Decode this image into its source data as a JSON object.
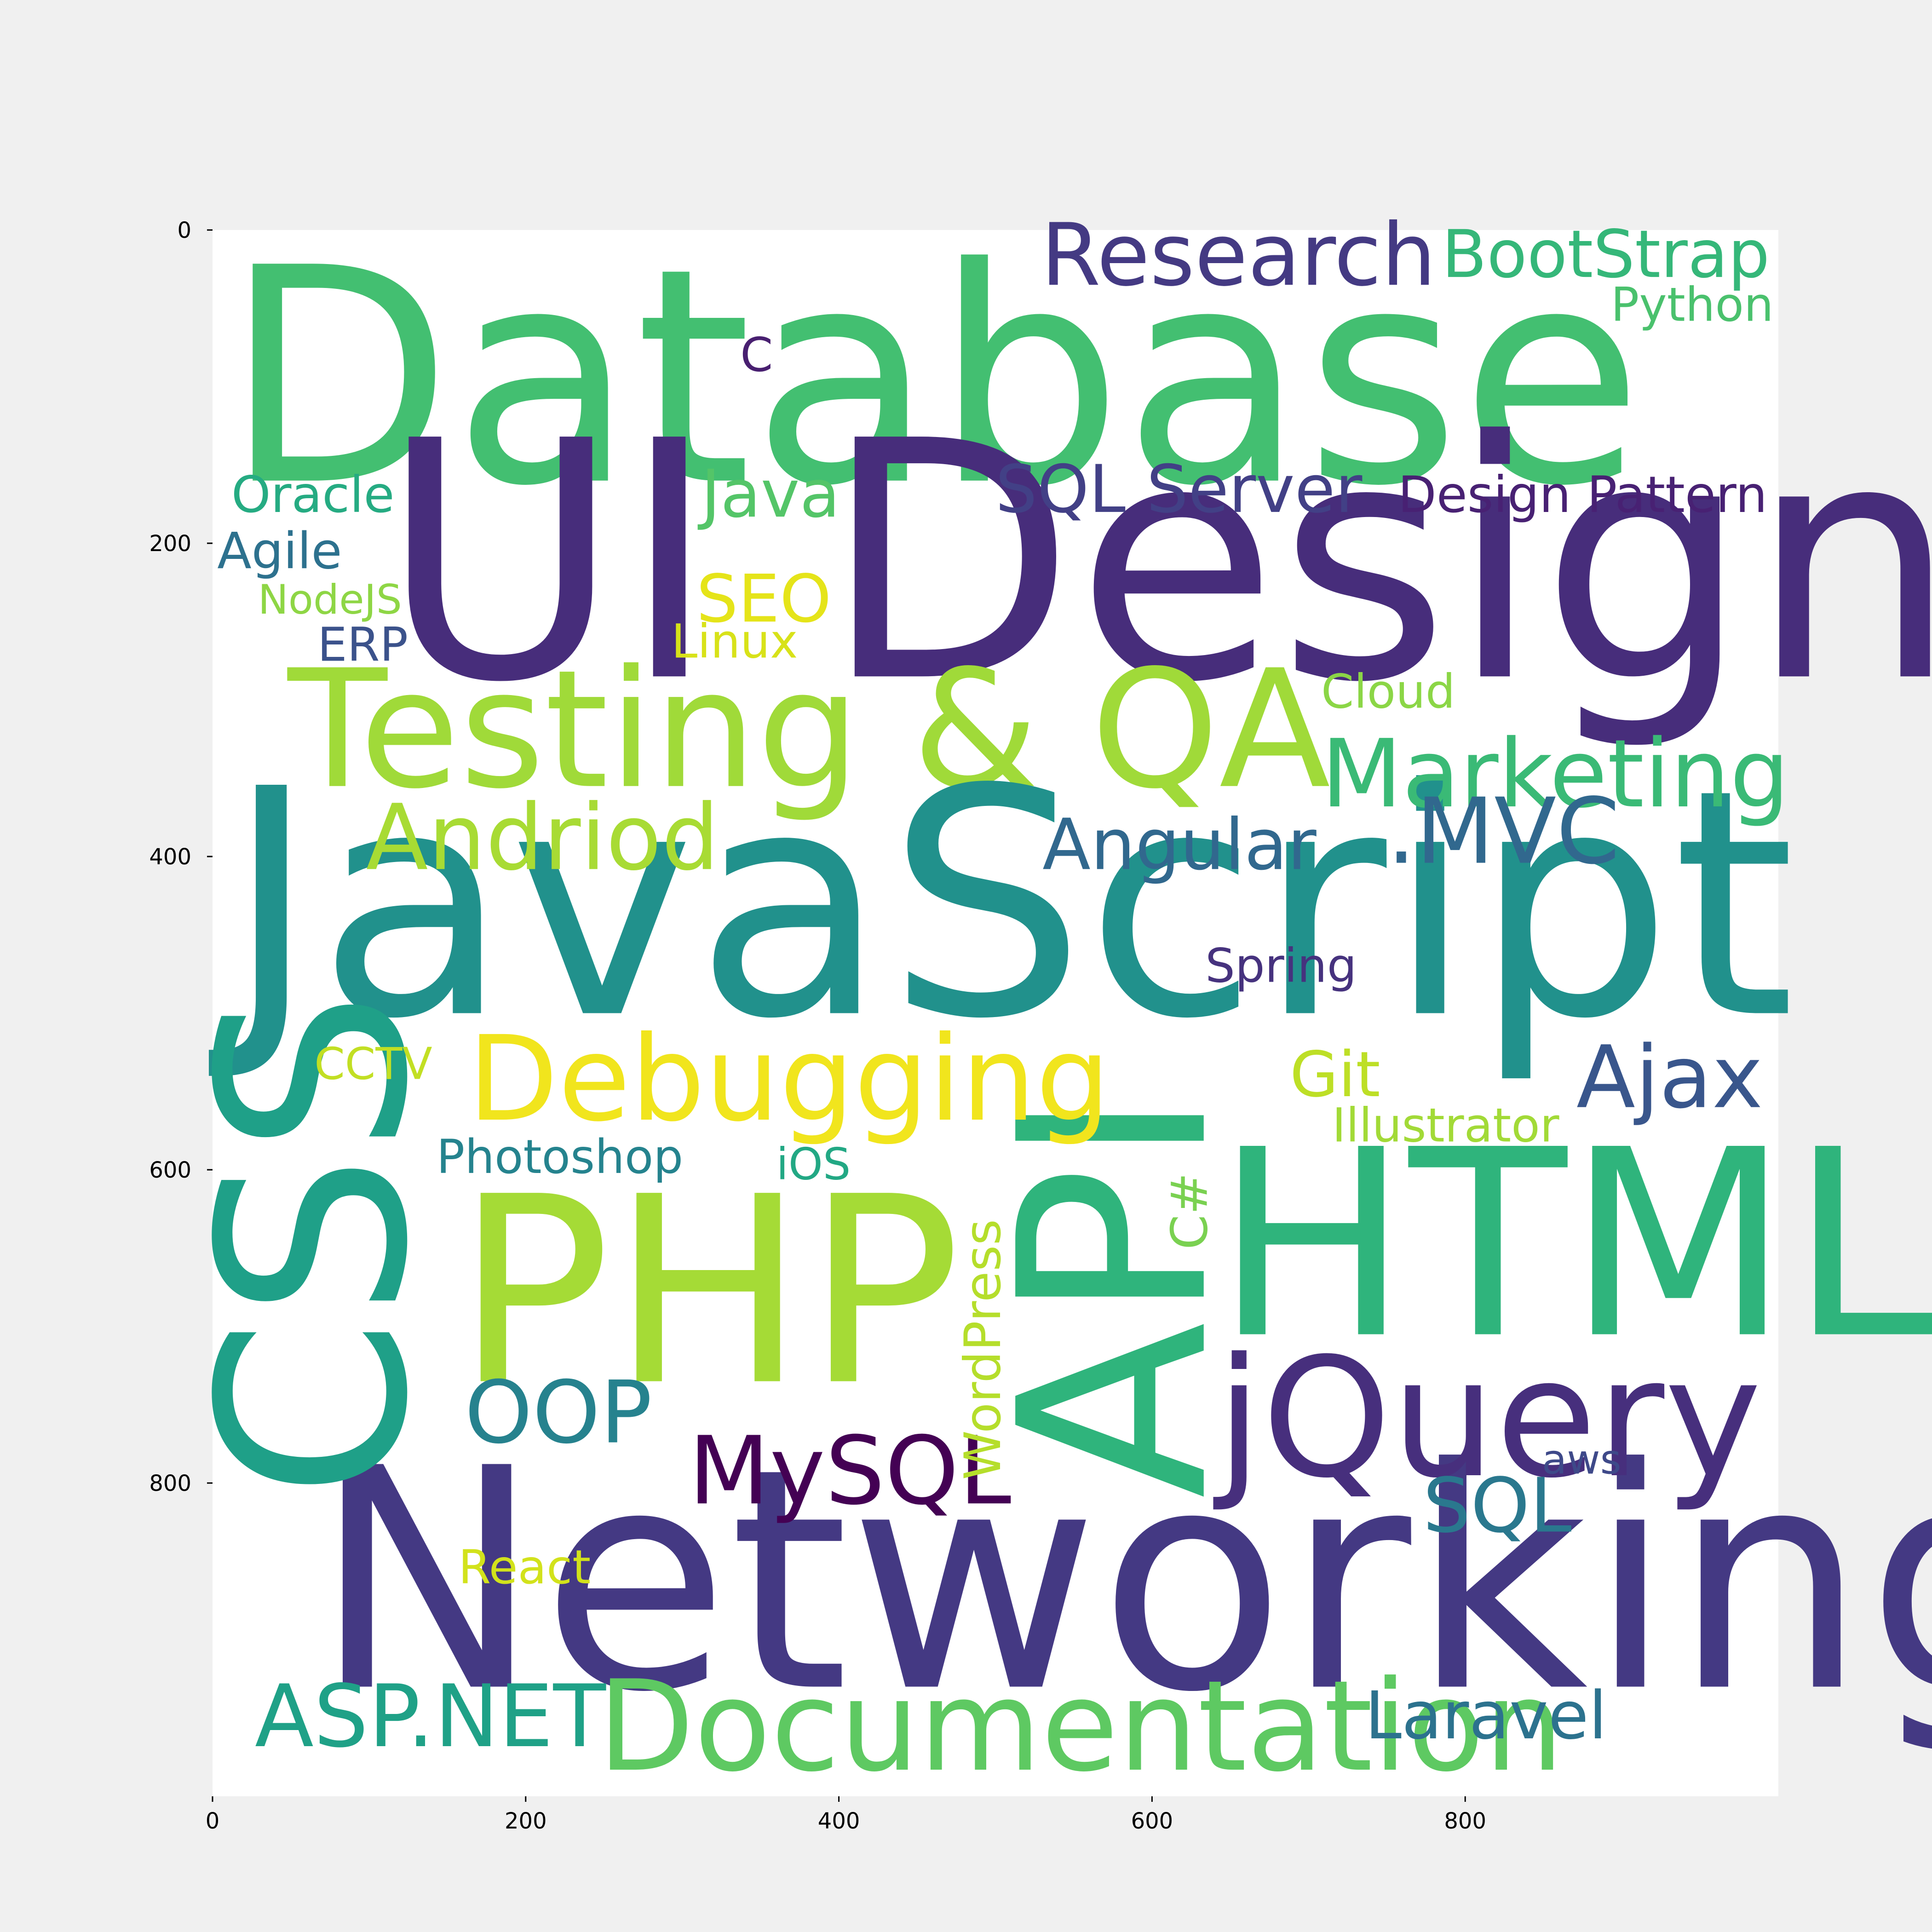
{
  "chart_data": {
    "type": "wordcloud",
    "xlim": [
      0,
      1000
    ],
    "ylim": [
      1000,
      0
    ],
    "grid": false,
    "xticks": [
      "0",
      "200",
      "400",
      "600",
      "800"
    ],
    "yticks": [
      "0",
      "200",
      "400",
      "600",
      "800"
    ],
    "colors": {
      "figure": "#f0f0f0",
      "plot": "#ffffff"
    },
    "words": [
      {
        "text": "Database",
        "x": 7,
        "y": 160,
        "size": 190,
        "color": "#43bf71",
        "rotate": 0
      },
      {
        "text": "UI Design",
        "x": 107,
        "y": 285,
        "size": 210,
        "color": "#472d7b",
        "rotate": 0
      },
      {
        "text": "Testing & QA",
        "x": 48,
        "y": 355,
        "size": 104,
        "color": "#a0da39",
        "rotate": 0
      },
      {
        "text": "JavaScript",
        "x": 8,
        "y": 500,
        "size": 200,
        "color": "#21918c",
        "rotate": 0
      },
      {
        "text": "Networking",
        "x": 64,
        "y": 930,
        "size": 195,
        "color": "#443983",
        "rotate": 0
      },
      {
        "text": "PHP",
        "x": 155,
        "y": 735,
        "size": 165,
        "color": "#a5db36",
        "rotate": 0
      },
      {
        "text": "HTML",
        "x": 640,
        "y": 705,
        "size": 165,
        "color": "#2fb47c",
        "rotate": 0
      },
      {
        "text": "CSS",
        "x": 122,
        "y": 810,
        "size": 165,
        "color": "#1fa088",
        "rotate": -90
      },
      {
        "text": "API",
        "x": 633,
        "y": 810,
        "size": 165,
        "color": "#2fb47c",
        "rotate": -90
      },
      {
        "text": "jQuery",
        "x": 641,
        "y": 795,
        "size": 105,
        "color": "#472f7d",
        "rotate": 0
      },
      {
        "text": "Documentation",
        "x": 246,
        "y": 983,
        "size": 80,
        "color": "#5ec962",
        "rotate": 0
      },
      {
        "text": "Debugging",
        "x": 163,
        "y": 568,
        "size": 75,
        "color": "#f1e51d",
        "rotate": 0
      },
      {
        "text": "Marketing",
        "x": 708,
        "y": 368,
        "size": 60,
        "color": "#3aba76",
        "rotate": 0
      },
      {
        "text": "Andriod",
        "x": 98,
        "y": 408,
        "size": 58,
        "color": "#a8db34",
        "rotate": 0
      },
      {
        "text": ".MVC",
        "x": 750,
        "y": 404,
        "size": 58,
        "color": "#31688e",
        "rotate": 0
      },
      {
        "text": "Research",
        "x": 529,
        "y": 35,
        "size": 55,
        "color": "#443a83",
        "rotate": 0
      },
      {
        "text": "ASP.NET",
        "x": 27,
        "y": 968,
        "size": 55,
        "color": "#1fa187",
        "rotate": 0
      },
      {
        "text": "MySQL",
        "x": 304,
        "y": 813,
        "size": 60,
        "color": "#440154",
        "rotate": 0
      },
      {
        "text": "OOP",
        "x": 161,
        "y": 774,
        "size": 55,
        "color": "#26828e",
        "rotate": 0
      },
      {
        "text": "Ajax",
        "x": 871,
        "y": 560,
        "size": 55,
        "color": "#39568c",
        "rotate": 0
      },
      {
        "text": "Angular",
        "x": 530,
        "y": 408,
        "size": 45,
        "color": "#31688e",
        "rotate": 0
      },
      {
        "text": "SQL",
        "x": 773,
        "y": 831,
        "size": 48,
        "color": "#2a788e",
        "rotate": 0
      },
      {
        "text": "Laravel",
        "x": 736,
        "y": 963,
        "size": 42,
        "color": "#2c728e",
        "rotate": 0
      },
      {
        "text": "BootStrap",
        "x": 785,
        "y": 30,
        "size": 42,
        "color": "#35b779",
        "rotate": 0
      },
      {
        "text": "SQL Server",
        "x": 500,
        "y": 180,
        "size": 42,
        "color": "#424086",
        "rotate": 0
      },
      {
        "text": "Java",
        "x": 312,
        "y": 183,
        "size": 42,
        "color": "#54c568",
        "rotate": 0
      },
      {
        "text": "SEO",
        "x": 309,
        "y": 250,
        "size": 42,
        "color": "#e5e419",
        "rotate": 0
      },
      {
        "text": "Design Pattern",
        "x": 757,
        "y": 180,
        "size": 32,
        "color": "#482173",
        "rotate": 0
      },
      {
        "text": "Python",
        "x": 893,
        "y": 58,
        "size": 30,
        "color": "#4ac16d",
        "rotate": 0
      },
      {
        "text": "C",
        "x": 337,
        "y": 90,
        "size": 30,
        "color": "#481f70",
        "rotate": 0
      },
      {
        "text": "Oracle",
        "x": 12,
        "y": 180,
        "size": 32,
        "color": "#25ab82",
        "rotate": 0
      },
      {
        "text": "Agile",
        "x": 3,
        "y": 216,
        "size": 32,
        "color": "#2d718e",
        "rotate": 0
      },
      {
        "text": "NodeJS",
        "x": 29,
        "y": 245,
        "size": 26,
        "color": "#8ed645",
        "rotate": 0
      },
      {
        "text": "ERP",
        "x": 67,
        "y": 275,
        "size": 30,
        "color": "#3b528b",
        "rotate": 0
      },
      {
        "text": "Linux",
        "x": 293,
        "y": 273,
        "size": 30,
        "color": "#d8e219",
        "rotate": 0
      },
      {
        "text": "Cloud",
        "x": 708,
        "y": 305,
        "size": 30,
        "color": "#8bd646",
        "rotate": 0
      },
      {
        "text": "Spring",
        "x": 634,
        "y": 480,
        "size": 30,
        "color": "#46327e",
        "rotate": 0
      },
      {
        "text": "CCTV",
        "x": 65,
        "y": 542,
        "size": 28,
        "color": "#c2df23",
        "rotate": 0
      },
      {
        "text": "Git",
        "x": 688,
        "y": 553,
        "size": 40,
        "color": "#bddf26",
        "rotate": 0
      },
      {
        "text": "Illustrator",
        "x": 715,
        "y": 582,
        "size": 30,
        "color": "#a2da37",
        "rotate": 0
      },
      {
        "text": "Photoshop",
        "x": 143,
        "y": 602,
        "size": 30,
        "color": "#25838e",
        "rotate": 0
      },
      {
        "text": "iOS",
        "x": 360,
        "y": 606,
        "size": 28,
        "color": "#22a884",
        "rotate": 0
      },
      {
        "text": "C#",
        "x": 635,
        "y": 651,
        "size": 32,
        "color": "#7ad151",
        "rotate": -90
      },
      {
        "text": "WordPress",
        "x": 503,
        "y": 798,
        "size": 32,
        "color": "#b5de2b",
        "rotate": -90
      },
      {
        "text": "aws",
        "x": 849,
        "y": 794,
        "size": 26,
        "color": "#3e4989",
        "rotate": 0
      },
      {
        "text": "React",
        "x": 157,
        "y": 864,
        "size": 30,
        "color": "#d2e21b",
        "rotate": 0
      }
    ]
  }
}
